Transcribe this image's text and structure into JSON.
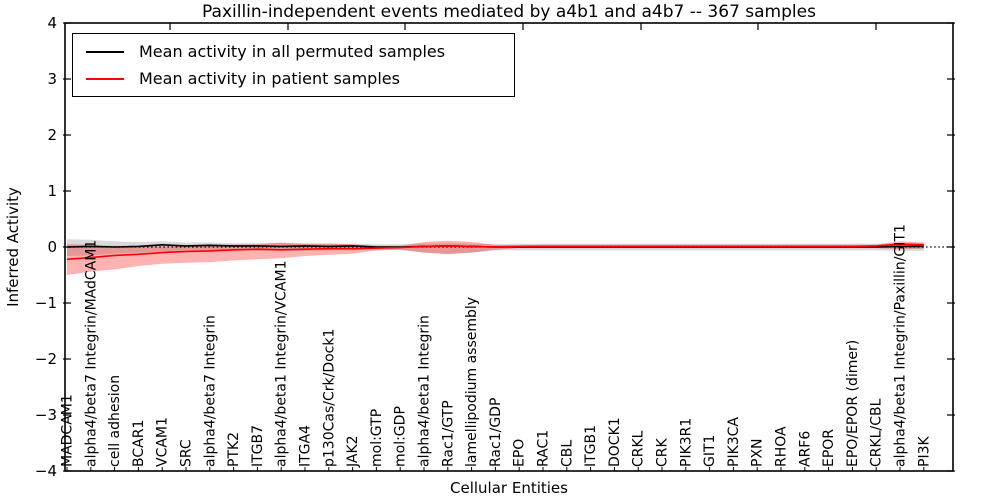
{
  "title": "Paxillin-independent events mediated by a4b1 and a4b7 -- 367 samples",
  "legend": {
    "items": [
      {
        "label": "Mean activity in all permuted samples",
        "color": "#000000"
      },
      {
        "label": "Mean activity in patient samples",
        "color": "#ff0000"
      }
    ]
  },
  "axes": {
    "xlabel": "Cellular Entities",
    "ylabel": "Inferred Activity"
  },
  "chart_data": {
    "type": "line",
    "title": "Paxillin-independent events mediated by a4b1 and a4b7 -- 367 samples",
    "xlabel": "Cellular Entities",
    "ylabel": "Inferred Activity",
    "ylim": [
      -4,
      4
    ],
    "yticks": [
      4,
      3,
      2,
      1,
      0,
      -1,
      -2,
      -3,
      -4
    ],
    "grid": false,
    "zero_reference_line": "dotted",
    "legend_position": "upper left",
    "categories": [
      "MADCAM1",
      "alpha4/beta7 Integrin/MAdCAM1",
      "cell adhesion",
      "BCAR1",
      "VCAM1",
      "SRC",
      "alpha4/beta7 Integrin",
      "PTK2",
      "ITGB7",
      "alpha4/beta1 Integrin/VCAM1",
      "ITGA4",
      "p130Cas/Crk/Dock1",
      "JAK2",
      "mol:GTP",
      "mol:GDP",
      "alpha4/beta1 Integrin",
      "Rac1/GTP",
      "lamellipodium assembly",
      "Rac1/GDP",
      "EPO",
      "RAC1",
      "CBL",
      "ITGB1",
      "DOCK1",
      "CRKL",
      "CRK",
      "PIK3R1",
      "GIT1",
      "PIK3CA",
      "PXN",
      "RHOA",
      "ARF6",
      "EPOR",
      "EPO/EPOR (dimer)",
      "CRKL/CBL",
      "alpha4/beta1 Integrin/Paxillin/GIT1",
      "PI3K"
    ],
    "series": [
      {
        "name": "Mean activity in all permuted samples",
        "color": "#000000",
        "band_color": "#000000",
        "band_opacity": 0.15,
        "values": [
          0.0,
          0.01,
          0.0,
          0.01,
          0.04,
          0.02,
          0.03,
          0.02,
          0.02,
          0.01,
          0.02,
          0.01,
          0.02,
          0.0,
          0.0,
          0.01,
          0.02,
          0.01,
          0.0,
          0.0,
          0.0,
          0.0,
          0.0,
          0.0,
          0.0,
          0.0,
          0.0,
          0.0,
          0.0,
          0.0,
          0.0,
          0.0,
          0.0,
          0.0,
          0.0,
          0.01,
          0.01
        ],
        "band_hi": [
          0.14,
          0.13,
          0.1,
          0.09,
          0.1,
          0.08,
          0.08,
          0.07,
          0.07,
          0.07,
          0.06,
          0.06,
          0.06,
          0.05,
          0.05,
          0.06,
          0.07,
          0.06,
          0.05,
          0.06,
          0.06,
          0.06,
          0.06,
          0.06,
          0.06,
          0.06,
          0.06,
          0.06,
          0.06,
          0.06,
          0.06,
          0.06,
          0.06,
          0.06,
          0.06,
          0.07,
          0.07
        ],
        "band_lo": [
          -0.16,
          -0.15,
          -0.12,
          -0.1,
          -0.08,
          -0.08,
          -0.08,
          -0.08,
          -0.07,
          -0.07,
          -0.07,
          -0.06,
          -0.06,
          -0.05,
          -0.05,
          -0.1,
          -0.12,
          -0.1,
          -0.06,
          -0.06,
          -0.06,
          -0.06,
          -0.06,
          -0.06,
          -0.06,
          -0.06,
          -0.06,
          -0.06,
          -0.06,
          -0.06,
          -0.06,
          -0.06,
          -0.06,
          -0.06,
          -0.06,
          -0.07,
          -0.07
        ]
      },
      {
        "name": "Mean activity in patient samples",
        "color": "#ff0000",
        "band_color": "#ff0000",
        "band_opacity": 0.3,
        "values": [
          -0.22,
          -0.19,
          -0.15,
          -0.13,
          -0.1,
          -0.08,
          -0.07,
          -0.05,
          -0.04,
          -0.05,
          -0.04,
          -0.03,
          -0.03,
          -0.02,
          -0.01,
          0.01,
          0.02,
          0.01,
          0.0,
          0.01,
          0.01,
          0.01,
          0.01,
          0.01,
          0.01,
          0.01,
          0.01,
          0.01,
          0.01,
          0.01,
          0.01,
          0.01,
          0.01,
          0.01,
          0.02,
          0.05,
          0.04
        ],
        "band_hi": [
          0.05,
          0.04,
          0.02,
          0.02,
          0.01,
          0.02,
          0.03,
          0.04,
          0.05,
          0.08,
          0.06,
          0.06,
          0.05,
          0.02,
          0.02,
          0.09,
          0.11,
          0.09,
          0.04,
          0.03,
          0.04,
          0.04,
          0.04,
          0.04,
          0.04,
          0.04,
          0.04,
          0.04,
          0.04,
          0.04,
          0.04,
          0.04,
          0.04,
          0.04,
          0.04,
          0.1,
          0.08
        ],
        "band_lo": [
          -0.5,
          -0.44,
          -0.4,
          -0.34,
          -0.3,
          -0.28,
          -0.27,
          -0.24,
          -0.22,
          -0.2,
          -0.16,
          -0.14,
          -0.12,
          -0.06,
          -0.05,
          -0.1,
          -0.13,
          -0.1,
          -0.05,
          -0.02,
          -0.02,
          -0.02,
          -0.02,
          -0.02,
          -0.02,
          -0.02,
          -0.02,
          -0.02,
          -0.02,
          -0.02,
          -0.02,
          -0.02,
          -0.02,
          -0.02,
          -0.02,
          -0.04,
          -0.03
        ]
      }
    ]
  }
}
